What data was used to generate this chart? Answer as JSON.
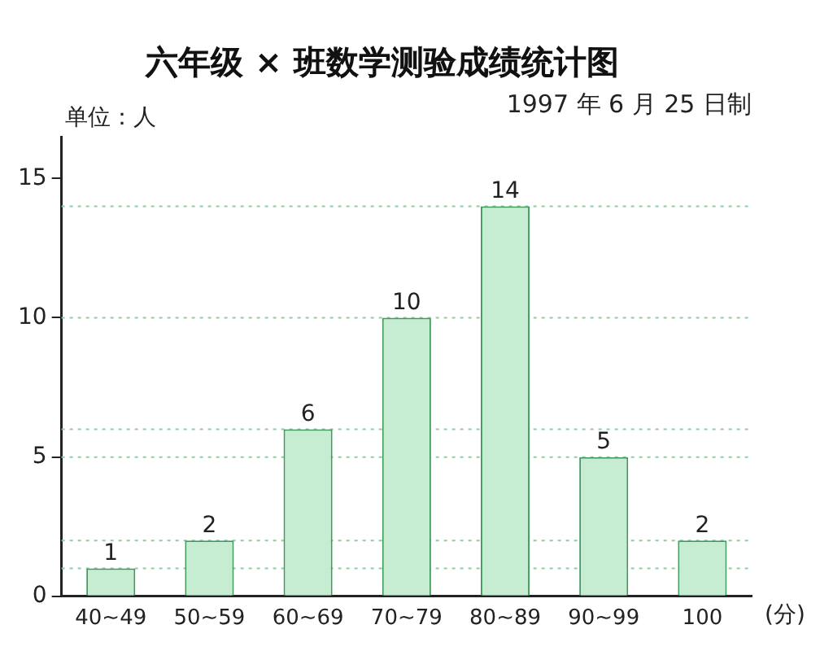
{
  "chart_data": {
    "type": "bar",
    "title": "六年级 × 班数学测验成绩统计图",
    "subtitle": "1997 年 6 月 25 日制",
    "ylabel": "单位：人",
    "xlabel": "(分)",
    "categories": [
      "40~49",
      "50~59",
      "60~69",
      "70~79",
      "80~89",
      "90~99",
      "100"
    ],
    "values": [
      1,
      2,
      6,
      10,
      14,
      5,
      2
    ],
    "color": "#c6ecd2",
    "ylim": [
      0,
      16.5
    ],
    "yticks": [
      0,
      5,
      10,
      15
    ],
    "grid": false,
    "data_labels": true,
    "legend": false,
    "ref_lines": [
      {
        "axis": "y",
        "value": 1,
        "color": "#8fce9f",
        "line_style": "dotted"
      },
      {
        "axis": "y",
        "value": 2,
        "color": "#8fce9f",
        "line_style": "dotted"
      },
      {
        "axis": "y",
        "value": 5,
        "color": "#8fce9f",
        "line_style": "dotted"
      },
      {
        "axis": "y",
        "value": 6,
        "color": "#8fce9f",
        "line_style": "dotted"
      },
      {
        "axis": "y",
        "value": 10,
        "color": "#8fce9f",
        "line_style": "dotted"
      },
      {
        "axis": "y",
        "value": 14,
        "color": "#8fce9f",
        "line_style": "dotted"
      }
    ]
  }
}
